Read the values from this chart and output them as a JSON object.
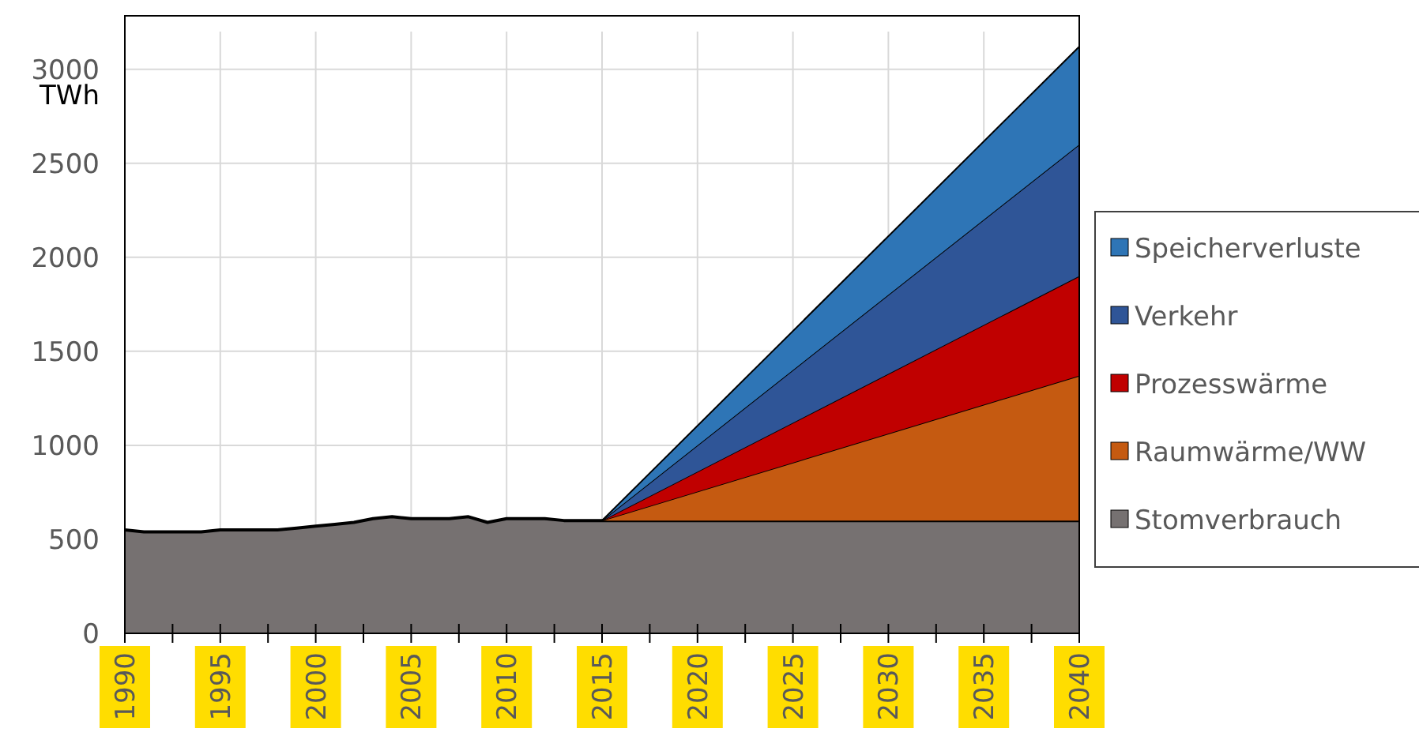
{
  "chart_data": {
    "type": "area",
    "stacked": true,
    "ylabel": "TWh",
    "xlim": [
      1990,
      2040
    ],
    "ylim": [
      0,
      3200
    ],
    "yticks": [
      0,
      500,
      1000,
      1500,
      2000,
      2500,
      3000
    ],
    "xticks": [
      1990,
      {
        "value": 1992.5,
        "label": null
      },
      1995,
      {
        "value": 1997.5,
        "label": null
      },
      2000,
      {
        "value": 2002.5,
        "label": null
      },
      2005,
      {
        "value": 2007.5,
        "label": null
      },
      2010,
      {
        "value": 2012.5,
        "label": null
      },
      2015,
      {
        "value": 2017.5,
        "label": null
      },
      2020,
      {
        "value": 2022.5,
        "label": null
      },
      2025,
      {
        "value": 2027.5,
        "label": null
      },
      2030,
      {
        "value": 2032.5,
        "label": null
      },
      2035,
      {
        "value": 2037.5,
        "label": null
      },
      2040
    ],
    "grid": true,
    "legend": "right",
    "x": [
      1990,
      1991,
      1992,
      1993,
      1994,
      1995,
      1996,
      1997,
      1998,
      1999,
      2000,
      2001,
      2002,
      2003,
      2004,
      2005,
      2006,
      2007,
      2008,
      2009,
      2010,
      2011,
      2012,
      2013,
      2014,
      2015,
      2040
    ],
    "series": [
      {
        "name": "Stomverbrauch",
        "color": "#767171",
        "values": [
          550,
          540,
          540,
          540,
          540,
          550,
          550,
          550,
          550,
          560,
          570,
          580,
          590,
          610,
          620,
          610,
          610,
          610,
          620,
          590,
          610,
          610,
          610,
          600,
          600,
          600,
          600
        ]
      },
      {
        "name": "Raumwärme/WW",
        "color": "#c55a11",
        "values": [
          0,
          0,
          0,
          0,
          0,
          0,
          0,
          0,
          0,
          0,
          0,
          0,
          0,
          0,
          0,
          0,
          0,
          0,
          0,
          0,
          0,
          0,
          0,
          0,
          0,
          0,
          770
        ]
      },
      {
        "name": "Prozesswärme",
        "color": "#c00000",
        "values": [
          0,
          0,
          0,
          0,
          0,
          0,
          0,
          0,
          0,
          0,
          0,
          0,
          0,
          0,
          0,
          0,
          0,
          0,
          0,
          0,
          0,
          0,
          0,
          0,
          0,
          0,
          530
        ]
      },
      {
        "name": "Verkehr",
        "color": "#2f5597",
        "values": [
          0,
          0,
          0,
          0,
          0,
          0,
          0,
          0,
          0,
          0,
          0,
          0,
          0,
          0,
          0,
          0,
          0,
          0,
          0,
          0,
          0,
          0,
          0,
          0,
          0,
          0,
          700
        ]
      },
      {
        "name": "Speicherverluste",
        "color": "#2e75b6",
        "values": [
          0,
          0,
          0,
          0,
          0,
          0,
          0,
          0,
          0,
          0,
          0,
          0,
          0,
          0,
          0,
          0,
          0,
          0,
          0,
          0,
          0,
          0,
          0,
          0,
          0,
          0,
          520
        ]
      }
    ]
  }
}
